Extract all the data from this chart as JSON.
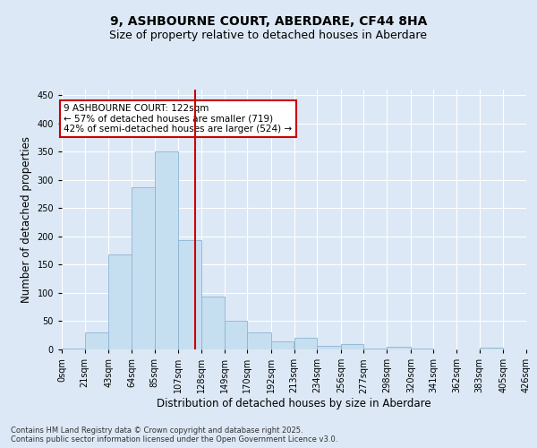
{
  "title": "9, ASHBOURNE COURT, ABERDARE, CF44 8HA",
  "subtitle": "Size of property relative to detached houses in Aberdare",
  "xlabel": "Distribution of detached houses by size in Aberdare",
  "ylabel": "Number of detached properties",
  "bar_color": "#c6dff0",
  "bar_edge_color": "#8ab4d4",
  "background_color": "#dce8f5",
  "grid_color": "#ffffff",
  "bin_labels": [
    "0sqm",
    "21sqm",
    "43sqm",
    "64sqm",
    "85sqm",
    "107sqm",
    "128sqm",
    "149sqm",
    "170sqm",
    "192sqm",
    "213sqm",
    "234sqm",
    "256sqm",
    "277sqm",
    "298sqm",
    "320sqm",
    "341sqm",
    "362sqm",
    "383sqm",
    "405sqm",
    "426sqm"
  ],
  "bar_heights": [
    2,
    30,
    168,
    287,
    350,
    194,
    94,
    50,
    30,
    15,
    20,
    7,
    10,
    1,
    4,
    1,
    0,
    0,
    3,
    0
  ],
  "bin_edges": [
    0,
    21,
    43,
    64,
    85,
    107,
    128,
    149,
    170,
    192,
    213,
    234,
    256,
    277,
    298,
    320,
    341,
    362,
    383,
    405,
    426
  ],
  "property_size": 122,
  "vline_color": "#cc0000",
  "annotation_line1": "9 ASHBOURNE COURT: 122sqm",
  "annotation_line2": "← 57% of detached houses are smaller (719)",
  "annotation_line3": "42% of semi-detached houses are larger (524) →",
  "annotation_box_color": "#ffffff",
  "annotation_box_edge": "#cc0000",
  "ylim": [
    0,
    460
  ],
  "yticks": [
    0,
    50,
    100,
    150,
    200,
    250,
    300,
    350,
    400,
    450
  ],
  "footnote": "Contains HM Land Registry data © Crown copyright and database right 2025.\nContains public sector information licensed under the Open Government Licence v3.0.",
  "title_fontsize": 10,
  "subtitle_fontsize": 9,
  "axis_label_fontsize": 8.5,
  "tick_fontsize": 7,
  "annotation_fontsize": 7.5,
  "footnote_fontsize": 6
}
